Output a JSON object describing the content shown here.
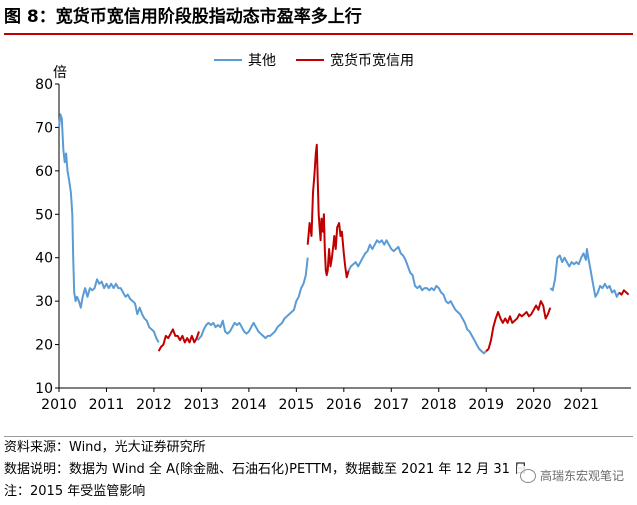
{
  "title": "图 8：宽货币宽信用阶段股指动态市盈率多上行",
  "notes": {
    "source": "资料来源：Wind，光大证券研究所",
    "data_desc": "数据说明：数据为 Wind 全 A(除金融、石油石化)PETTM，数据截至 2021 年 12 月 31 日",
    "footnote": "注：2015 年受监管影响"
  },
  "watermark": "高瑞东宏观笔记",
  "chart_data": {
    "type": "line",
    "ylabel": "倍",
    "ylim": [
      10,
      80
    ],
    "yticks": [
      10,
      20,
      30,
      40,
      50,
      60,
      70,
      80
    ],
    "xlim": [
      2010,
      2022.05
    ],
    "xticks": [
      "2010",
      "2011",
      "2012",
      "2013",
      "2014",
      "2015",
      "2016",
      "2017",
      "2018",
      "2019",
      "2020",
      "2021"
    ],
    "grid": false,
    "legend": "top-center",
    "series": [
      {
        "name": "其他",
        "color": "#5b9bd5",
        "segments": [
          [
            [
              2010.0,
              70
            ],
            [
              2010.03,
              73
            ],
            [
              2010.06,
              72
            ],
            [
              2010.09,
              65
            ],
            [
              2010.12,
              62
            ],
            [
              2010.15,
              64
            ],
            [
              2010.18,
              60
            ],
            [
              2010.21,
              58
            ],
            [
              2010.25,
              55
            ],
            [
              2010.28,
              50
            ],
            [
              2010.3,
              40
            ],
            [
              2010.32,
              32
            ],
            [
              2010.35,
              30
            ],
            [
              2010.38,
              31
            ],
            [
              2010.42,
              30
            ],
            [
              2010.46,
              28.5
            ],
            [
              2010.5,
              31
            ],
            [
              2010.55,
              33
            ],
            [
              2010.6,
              31
            ],
            [
              2010.65,
              33
            ],
            [
              2010.7,
              32.5
            ],
            [
              2010.75,
              33
            ],
            [
              2010.8,
              35
            ],
            [
              2010.85,
              34
            ],
            [
              2010.9,
              34.5
            ],
            [
              2010.95,
              33
            ],
            [
              2011.0,
              34
            ],
            [
              2011.05,
              33
            ],
            [
              2011.1,
              34
            ],
            [
              2011.15,
              33
            ],
            [
              2011.2,
              34
            ],
            [
              2011.25,
              33
            ],
            [
              2011.3,
              33
            ],
            [
              2011.35,
              32
            ],
            [
              2011.4,
              31
            ],
            [
              2011.45,
              31.5
            ],
            [
              2011.5,
              30.5
            ],
            [
              2011.55,
              30
            ],
            [
              2011.6,
              29.5
            ],
            [
              2011.65,
              27
            ],
            [
              2011.7,
              28.5
            ],
            [
              2011.75,
              27
            ],
            [
              2011.8,
              26
            ],
            [
              2011.85,
              25.5
            ],
            [
              2011.9,
              24
            ],
            [
              2011.95,
              23.5
            ],
            [
              2012.0,
              23
            ],
            [
              2012.05,
              21.5
            ],
            [
              2012.1,
              20.5
            ]
          ],
          [
            [
              2012.92,
              21
            ],
            [
              2013.0,
              22
            ],
            [
              2013.05,
              23.5
            ],
            [
              2013.1,
              24.5
            ],
            [
              2013.15,
              25
            ],
            [
              2013.2,
              24.5
            ],
            [
              2013.25,
              25
            ],
            [
              2013.3,
              24
            ],
            [
              2013.35,
              24.5
            ],
            [
              2013.4,
              24
            ],
            [
              2013.45,
              25.5
            ],
            [
              2013.5,
              23
            ],
            [
              2013.55,
              22.5
            ],
            [
              2013.6,
              23
            ],
            [
              2013.65,
              24
            ],
            [
              2013.7,
              25
            ],
            [
              2013.75,
              24.5
            ],
            [
              2013.8,
              25
            ],
            [
              2013.85,
              24
            ],
            [
              2013.9,
              23
            ],
            [
              2013.95,
              22.5
            ],
            [
              2014.0,
              23
            ],
            [
              2014.05,
              24
            ],
            [
              2014.1,
              25
            ],
            [
              2014.15,
              24
            ],
            [
              2014.2,
              23
            ],
            [
              2014.25,
              22.5
            ],
            [
              2014.3,
              22
            ],
            [
              2014.35,
              21.5
            ],
            [
              2014.4,
              22
            ],
            [
              2014.45,
              22
            ],
            [
              2014.5,
              22.5
            ],
            [
              2014.55,
              23
            ],
            [
              2014.6,
              24
            ],
            [
              2014.65,
              24.5
            ],
            [
              2014.7,
              25
            ],
            [
              2014.75,
              26
            ],
            [
              2014.8,
              26.5
            ],
            [
              2014.85,
              27
            ],
            [
              2014.9,
              27.5
            ],
            [
              2014.95,
              28
            ],
            [
              2015.0,
              30
            ],
            [
              2015.05,
              31
            ],
            [
              2015.1,
              33
            ],
            [
              2015.15,
              34
            ],
            [
              2015.2,
              36
            ],
            [
              2015.24,
              40
            ]
          ],
          [
            [
              2016.1,
              37
            ],
            [
              2016.15,
              38
            ],
            [
              2016.2,
              38.5
            ],
            [
              2016.25,
              39
            ],
            [
              2016.3,
              38
            ],
            [
              2016.35,
              39
            ],
            [
              2016.4,
              40
            ],
            [
              2016.45,
              41
            ],
            [
              2016.5,
              41.5
            ],
            [
              2016.55,
              43
            ],
            [
              2016.6,
              42
            ],
            [
              2016.65,
              43
            ],
            [
              2016.7,
              44
            ],
            [
              2016.75,
              43.5
            ],
            [
              2016.8,
              44
            ],
            [
              2016.85,
              43
            ],
            [
              2016.9,
              44
            ],
            [
              2016.95,
              43
            ],
            [
              2017.0,
              42
            ],
            [
              2017.05,
              41.5
            ],
            [
              2017.1,
              42
            ],
            [
              2017.15,
              42.5
            ],
            [
              2017.2,
              41
            ],
            [
              2017.25,
              40.5
            ],
            [
              2017.3,
              39.5
            ],
            [
              2017.35,
              38
            ],
            [
              2017.4,
              36.5
            ],
            [
              2017.45,
              36
            ],
            [
              2017.5,
              33.5
            ],
            [
              2017.55,
              33
            ],
            [
              2017.6,
              33.5
            ],
            [
              2017.65,
              32.5
            ],
            [
              2017.7,
              33
            ],
            [
              2017.75,
              33
            ],
            [
              2017.8,
              32.5
            ],
            [
              2017.85,
              33
            ],
            [
              2017.9,
              32.5
            ],
            [
              2017.95,
              33.5
            ],
            [
              2018.0,
              33
            ],
            [
              2018.05,
              32
            ],
            [
              2018.1,
              31.5
            ],
            [
              2018.15,
              30
            ],
            [
              2018.2,
              29.5
            ],
            [
              2018.25,
              30
            ],
            [
              2018.3,
              29
            ],
            [
              2018.35,
              28
            ],
            [
              2018.4,
              27.5
            ],
            [
              2018.45,
              27
            ],
            [
              2018.5,
              26
            ],
            [
              2018.55,
              25
            ],
            [
              2018.6,
              23.5
            ],
            [
              2018.65,
              23
            ],
            [
              2018.7,
              22
            ],
            [
              2018.75,
              21
            ],
            [
              2018.8,
              20
            ],
            [
              2018.85,
              19
            ],
            [
              2018.9,
              18.5
            ],
            [
              2018.95,
              18
            ],
            [
              2019.0,
              18.5
            ]
          ],
          [
            [
              2020.35,
              33
            ],
            [
              2020.4,
              32.5
            ],
            [
              2020.45,
              35
            ],
            [
              2020.5,
              40
            ],
            [
              2020.55,
              40.5
            ],
            [
              2020.6,
              39
            ],
            [
              2020.65,
              40
            ],
            [
              2020.7,
              39
            ],
            [
              2020.75,
              38
            ],
            [
              2020.8,
              39
            ],
            [
              2020.85,
              38.5
            ],
            [
              2020.9,
              39
            ],
            [
              2020.95,
              38.5
            ],
            [
              2021.0,
              40
            ],
            [
              2021.05,
              41
            ],
            [
              2021.1,
              39.5
            ],
            [
              2021.12,
              42
            ],
            [
              2021.15,
              40
            ],
            [
              2021.2,
              37
            ],
            [
              2021.25,
              34
            ],
            [
              2021.3,
              31
            ],
            [
              2021.35,
              32
            ],
            [
              2021.4,
              33.5
            ],
            [
              2021.45,
              33
            ],
            [
              2021.5,
              34
            ],
            [
              2021.55,
              33
            ],
            [
              2021.6,
              33.5
            ],
            [
              2021.65,
              32
            ],
            [
              2021.7,
              32.5
            ],
            [
              2021.75,
              31
            ],
            [
              2021.8,
              32
            ]
          ]
        ]
      },
      {
        "name": "宽货币宽信用",
        "color": "#c00000",
        "segments": [
          [
            [
              2012.1,
              18.5
            ],
            [
              2012.15,
              19.5
            ],
            [
              2012.2,
              20
            ],
            [
              2012.25,
              22
            ],
            [
              2012.3,
              21.5
            ],
            [
              2012.35,
              22.5
            ],
            [
              2012.4,
              23.5
            ],
            [
              2012.45,
              22
            ],
            [
              2012.5,
              22
            ],
            [
              2012.55,
              21
            ],
            [
              2012.6,
              22
            ],
            [
              2012.65,
              20.5
            ],
            [
              2012.7,
              21.5
            ],
            [
              2012.75,
              20.5
            ],
            [
              2012.8,
              22
            ],
            [
              2012.85,
              20.5
            ],
            [
              2012.9,
              21.5
            ],
            [
              2012.95,
              23
            ]
          ],
          [
            [
              2015.24,
              43
            ],
            [
              2015.28,
              48
            ],
            [
              2015.32,
              45
            ],
            [
              2015.35,
              55
            ],
            [
              2015.38,
              59
            ],
            [
              2015.41,
              64
            ],
            [
              2015.43,
              66
            ],
            [
              2015.45,
              58
            ],
            [
              2015.47,
              50
            ],
            [
              2015.49,
              47
            ],
            [
              2015.51,
              44
            ],
            [
              2015.53,
              49
            ],
            [
              2015.56,
              46
            ],
            [
              2015.58,
              50
            ],
            [
              2015.6,
              42
            ],
            [
              2015.62,
              37
            ],
            [
              2015.64,
              36
            ],
            [
              2015.66,
              37
            ],
            [
              2015.69,
              42
            ],
            [
              2015.72,
              38
            ],
            [
              2015.75,
              40
            ],
            [
              2015.78,
              43
            ],
            [
              2015.8,
              45
            ],
            [
              2015.83,
              42
            ],
            [
              2015.86,
              47
            ],
            [
              2015.9,
              48
            ],
            [
              2015.93,
              45
            ],
            [
              2015.96,
              46
            ],
            [
              2016.0,
              41
            ],
            [
              2016.03,
              38
            ],
            [
              2016.06,
              35.5
            ],
            [
              2016.1,
              37
            ]
          ],
          [
            [
              2019.0,
              18.5
            ],
            [
              2019.05,
              19
            ],
            [
              2019.1,
              21
            ],
            [
              2019.15,
              24
            ],
            [
              2019.2,
              26
            ],
            [
              2019.25,
              27.5
            ],
            [
              2019.3,
              26
            ],
            [
              2019.35,
              25
            ],
            [
              2019.4,
              26
            ],
            [
              2019.45,
              25
            ],
            [
              2019.5,
              26.5
            ],
            [
              2019.55,
              25
            ],
            [
              2019.6,
              25.5
            ],
            [
              2019.65,
              26
            ],
            [
              2019.7,
              27
            ],
            [
              2019.75,
              26.5
            ],
            [
              2019.8,
              27
            ],
            [
              2019.85,
              27.5
            ],
            [
              2019.9,
              26.5
            ],
            [
              2019.95,
              27
            ],
            [
              2020.0,
              28
            ],
            [
              2020.05,
              29
            ],
            [
              2020.1,
              28
            ],
            [
              2020.15,
              30
            ],
            [
              2020.2,
              29
            ],
            [
              2020.25,
              26
            ],
            [
              2020.3,
              27
            ],
            [
              2020.35,
              28.5
            ]
          ],
          [
            [
              2021.8,
              32
            ],
            [
              2021.85,
              31.5
            ],
            [
              2021.9,
              32.5
            ],
            [
              2021.95,
              32
            ],
            [
              2022.0,
              31.5
            ]
          ]
        ]
      }
    ]
  }
}
